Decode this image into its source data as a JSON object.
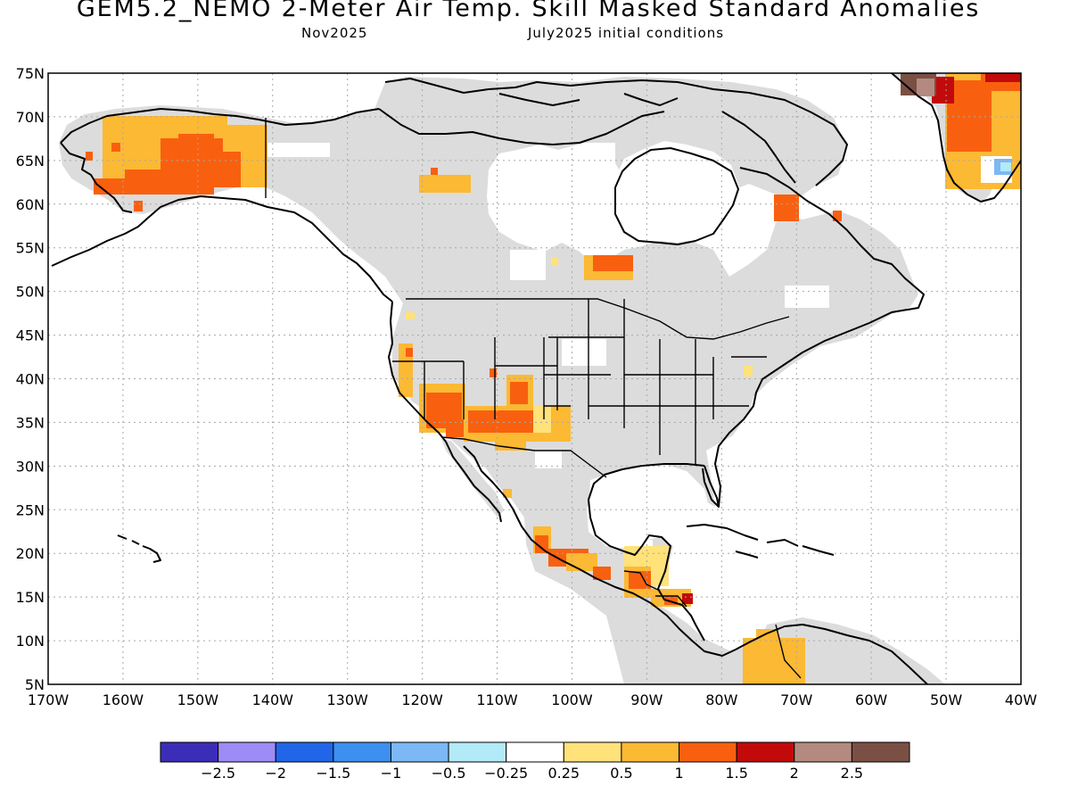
{
  "title": "GEM5.2_NEMO 2-Meter Air Temp. Skill Masked Standard Anomalies",
  "subtitle_left": "Nov2025",
  "subtitle_right": "July2025 initial conditions",
  "map": {
    "lon_range": [
      -170,
      -40
    ],
    "lat_range": [
      5,
      75
    ],
    "lat_ticks": [
      {
        "value": 75,
        "label": "75N"
      },
      {
        "value": 70,
        "label": "70N"
      },
      {
        "value": 65,
        "label": "65N"
      },
      {
        "value": 60,
        "label": "60N"
      },
      {
        "value": 55,
        "label": "55N"
      },
      {
        "value": 50,
        "label": "50N"
      },
      {
        "value": 45,
        "label": "45N"
      },
      {
        "value": 40,
        "label": "40N"
      },
      {
        "value": 35,
        "label": "35N"
      },
      {
        "value": 30,
        "label": "30N"
      },
      {
        "value": 25,
        "label": "25N"
      },
      {
        "value": 20,
        "label": "20N"
      },
      {
        "value": 15,
        "label": "15N"
      },
      {
        "value": 10,
        "label": "10N"
      },
      {
        "value": 5,
        "label": "5N"
      }
    ],
    "lon_ticks": [
      {
        "value": -170,
        "label": "170W"
      },
      {
        "value": -160,
        "label": "160W"
      },
      {
        "value": -150,
        "label": "150W"
      },
      {
        "value": -140,
        "label": "140W"
      },
      {
        "value": -130,
        "label": "130W"
      },
      {
        "value": -120,
        "label": "120W"
      },
      {
        "value": -110,
        "label": "110W"
      },
      {
        "value": -100,
        "label": "100W"
      },
      {
        "value": -90,
        "label": "90W"
      },
      {
        "value": -80,
        "label": "80W"
      },
      {
        "value": -70,
        "label": "70W"
      },
      {
        "value": -60,
        "label": "60W"
      },
      {
        "value": -50,
        "label": "50W"
      },
      {
        "value": -40,
        "label": "40W"
      }
    ],
    "colors": {
      "masked_land": "#dcdcdc",
      "coast": "#000000",
      "grid": "#a8a8a8"
    },
    "anomaly_regions": [
      {
        "name": "Alaska",
        "category": "0.25-0.5"
      },
      {
        "name": "Alaska",
        "category": "0.5-1"
      },
      {
        "name": "Alaska",
        "category": "1-1.5"
      },
      {
        "name": "Southwest US",
        "category": "0.25-0.5"
      },
      {
        "name": "Southwest US",
        "category": "0.5-1"
      },
      {
        "name": "Southwest US",
        "category": "1-1.5"
      },
      {
        "name": "Central America",
        "category": "1-1.5"
      },
      {
        "name": "Greenland",
        "category": "1.5-2"
      },
      {
        "name": "Greenland",
        "category": ">2.5"
      }
    ]
  },
  "colorbar": {
    "colors": [
      "#3c2db8",
      "#9d8cf5",
      "#2166e8",
      "#3d8ff0",
      "#7bb8f5",
      "#b2eaf8",
      "#ffffff",
      "#ffe27a",
      "#fcb933",
      "#f8600f",
      "#c20a0a",
      "#b48a80",
      "#7a5045"
    ],
    "labels": [
      "−2.5",
      "−2",
      "−1.5",
      "−1",
      "−0.5",
      "−0.25",
      "0.25",
      "0.5",
      "1",
      "1.5",
      "2",
      "2.5"
    ]
  }
}
